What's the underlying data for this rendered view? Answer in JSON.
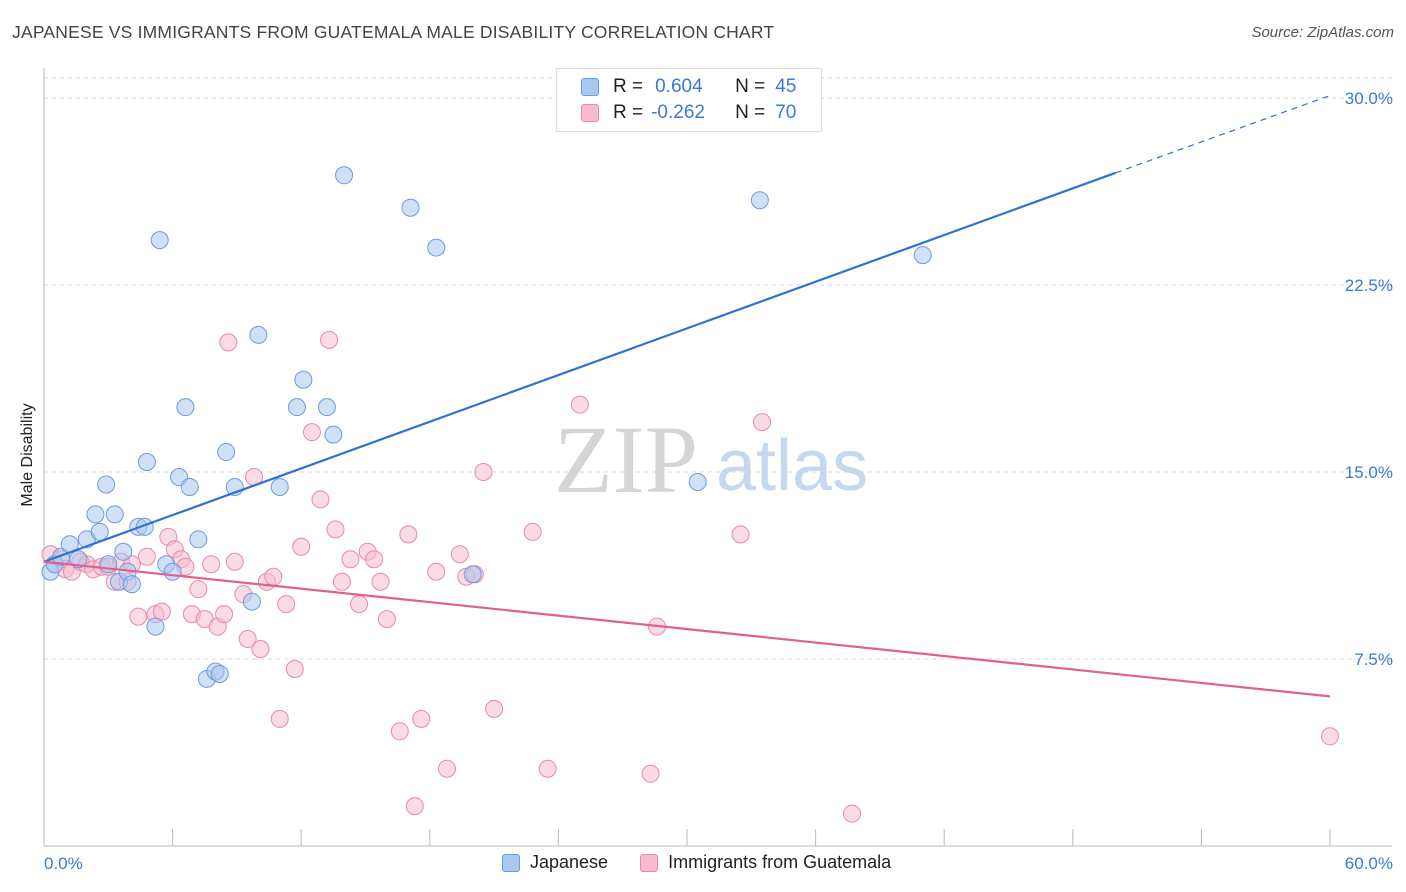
{
  "title": "JAPANESE VS IMMIGRANTS FROM GUATEMALA MALE DISABILITY CORRELATION CHART",
  "source": "Source: ZipAtlas.com",
  "watermark": {
    "zip": "ZIP",
    "atlas": "atlas"
  },
  "colors": {
    "blue_fill": "#a9c8f0",
    "blue_stroke": "#6c9be0",
    "blue_line": "#2f72d0",
    "pink_fill": "#f6bccd",
    "pink_stroke": "#e98aa8",
    "pink_line": "#e0608e",
    "tick_text": "#3b78d8",
    "grid": "#d8d8d8"
  },
  "legend": {
    "rows": [
      {
        "r_label": "R =",
        "r_value": "0.604",
        "n_label": "N =",
        "n_value": "45"
      },
      {
        "r_label": "R =",
        "r_value": "-0.262",
        "n_label": "N =",
        "n_value": "70"
      }
    ]
  },
  "bottom_legend": [
    "Japanese",
    "Immigrants from Guatemala"
  ],
  "chart_data": {
    "type": "scatter",
    "title": "JAPANESE VS IMMIGRANTS FROM GUATEMALA MALE DISABILITY CORRELATION CHART",
    "xlabel": "",
    "ylabel": "Male Disability",
    "xlim": [
      0,
      60
    ],
    "ylim": [
      0,
      30
    ],
    "x_tick_labels": [
      "0.0%",
      "60.0%"
    ],
    "y_ticks": [
      7.5,
      15.0,
      22.5,
      30.0
    ],
    "y_tick_labels": [
      "7.5%",
      "15.0%",
      "22.5%",
      "30.0%"
    ],
    "grid": true,
    "legend_position": "top-center",
    "series": [
      {
        "name": "Japanese",
        "r": 0.604,
        "n": 45,
        "trend": {
          "x0": 0,
          "y0": 11.4,
          "x1": 50,
          "y1": 27.0,
          "dashed_to": [
            60,
            30.1
          ]
        },
        "points": [
          [
            0.3,
            11.0
          ],
          [
            0.5,
            11.3
          ],
          [
            0.8,
            11.6
          ],
          [
            1.2,
            12.1
          ],
          [
            1.6,
            11.5
          ],
          [
            2.0,
            12.3
          ],
          [
            2.4,
            13.3
          ],
          [
            2.6,
            12.6
          ],
          [
            2.9,
            14.5
          ],
          [
            3.0,
            11.3
          ],
          [
            3.3,
            13.3
          ],
          [
            3.5,
            10.6
          ],
          [
            3.7,
            11.8
          ],
          [
            3.9,
            11.0
          ],
          [
            4.1,
            10.5
          ],
          [
            4.4,
            12.8
          ],
          [
            4.7,
            12.8
          ],
          [
            4.8,
            15.4
          ],
          [
            5.2,
            8.8
          ],
          [
            5.4,
            24.3
          ],
          [
            5.7,
            11.3
          ],
          [
            6.0,
            11.0
          ],
          [
            6.3,
            14.8
          ],
          [
            6.6,
            17.6
          ],
          [
            6.8,
            14.4
          ],
          [
            7.2,
            12.3
          ],
          [
            7.6,
            6.7
          ],
          [
            8.0,
            7.0
          ],
          [
            8.2,
            6.9
          ],
          [
            8.5,
            15.8
          ],
          [
            8.9,
            14.4
          ],
          [
            9.7,
            9.8
          ],
          [
            10.0,
            20.5
          ],
          [
            11.0,
            14.4
          ],
          [
            11.8,
            17.6
          ],
          [
            12.1,
            18.7
          ],
          [
            13.2,
            17.6
          ],
          [
            13.5,
            16.5
          ],
          [
            14.0,
            26.9
          ],
          [
            17.1,
            25.6
          ],
          [
            18.3,
            24.0
          ],
          [
            20.0,
            10.9
          ],
          [
            30.5,
            14.6
          ],
          [
            33.4,
            25.9
          ],
          [
            41.0,
            23.7
          ]
        ]
      },
      {
        "name": "Immigrants from Guatemala",
        "r": -0.262,
        "n": 70,
        "trend": {
          "x0": 0,
          "y0": 11.4,
          "x1": 60,
          "y1": 6.0
        },
        "points": [
          [
            0.3,
            11.7
          ],
          [
            0.5,
            11.3
          ],
          [
            0.8,
            11.5
          ],
          [
            1.0,
            11.1
          ],
          [
            1.3,
            11.0
          ],
          [
            1.7,
            11.4
          ],
          [
            2.0,
            11.3
          ],
          [
            2.3,
            11.1
          ],
          [
            2.7,
            11.2
          ],
          [
            3.0,
            11.2
          ],
          [
            3.3,
            10.6
          ],
          [
            3.6,
            11.4
          ],
          [
            3.9,
            10.6
          ],
          [
            4.1,
            11.3
          ],
          [
            4.4,
            9.2
          ],
          [
            4.8,
            11.6
          ],
          [
            5.2,
            9.3
          ],
          [
            5.5,
            9.4
          ],
          [
            5.8,
            12.4
          ],
          [
            6.1,
            11.9
          ],
          [
            6.4,
            11.5
          ],
          [
            6.6,
            11.2
          ],
          [
            6.9,
            9.3
          ],
          [
            7.2,
            10.3
          ],
          [
            7.5,
            9.1
          ],
          [
            7.8,
            11.3
          ],
          [
            8.1,
            8.8
          ],
          [
            8.4,
            9.3
          ],
          [
            8.6,
            20.2
          ],
          [
            8.9,
            11.4
          ],
          [
            9.3,
            10.1
          ],
          [
            9.5,
            8.3
          ],
          [
            9.8,
            14.8
          ],
          [
            10.1,
            7.9
          ],
          [
            10.4,
            10.6
          ],
          [
            10.7,
            10.8
          ],
          [
            11.0,
            5.1
          ],
          [
            11.3,
            9.7
          ],
          [
            11.7,
            7.1
          ],
          [
            12.0,
            12.0
          ],
          [
            12.5,
            16.6
          ],
          [
            12.9,
            13.9
          ],
          [
            13.3,
            20.3
          ],
          [
            13.6,
            12.7
          ],
          [
            13.9,
            10.6
          ],
          [
            14.3,
            11.5
          ],
          [
            14.7,
            9.7
          ],
          [
            15.1,
            11.8
          ],
          [
            15.4,
            11.5
          ],
          [
            15.7,
            10.6
          ],
          [
            16.0,
            9.1
          ],
          [
            16.6,
            4.6
          ],
          [
            17.0,
            12.5
          ],
          [
            17.3,
            1.6
          ],
          [
            17.6,
            5.1
          ],
          [
            18.3,
            11.0
          ],
          [
            18.8,
            3.1
          ],
          [
            19.4,
            11.7
          ],
          [
            19.7,
            10.8
          ],
          [
            20.1,
            10.9
          ],
          [
            20.5,
            15.0
          ],
          [
            21.0,
            5.5
          ],
          [
            22.8,
            12.6
          ],
          [
            23.5,
            3.1
          ],
          [
            25.0,
            17.7
          ],
          [
            28.3,
            2.9
          ],
          [
            28.6,
            8.8
          ],
          [
            32.5,
            12.5
          ],
          [
            33.5,
            17.0
          ],
          [
            37.7,
            1.3
          ],
          [
            60.0,
            4.4
          ]
        ]
      }
    ]
  }
}
